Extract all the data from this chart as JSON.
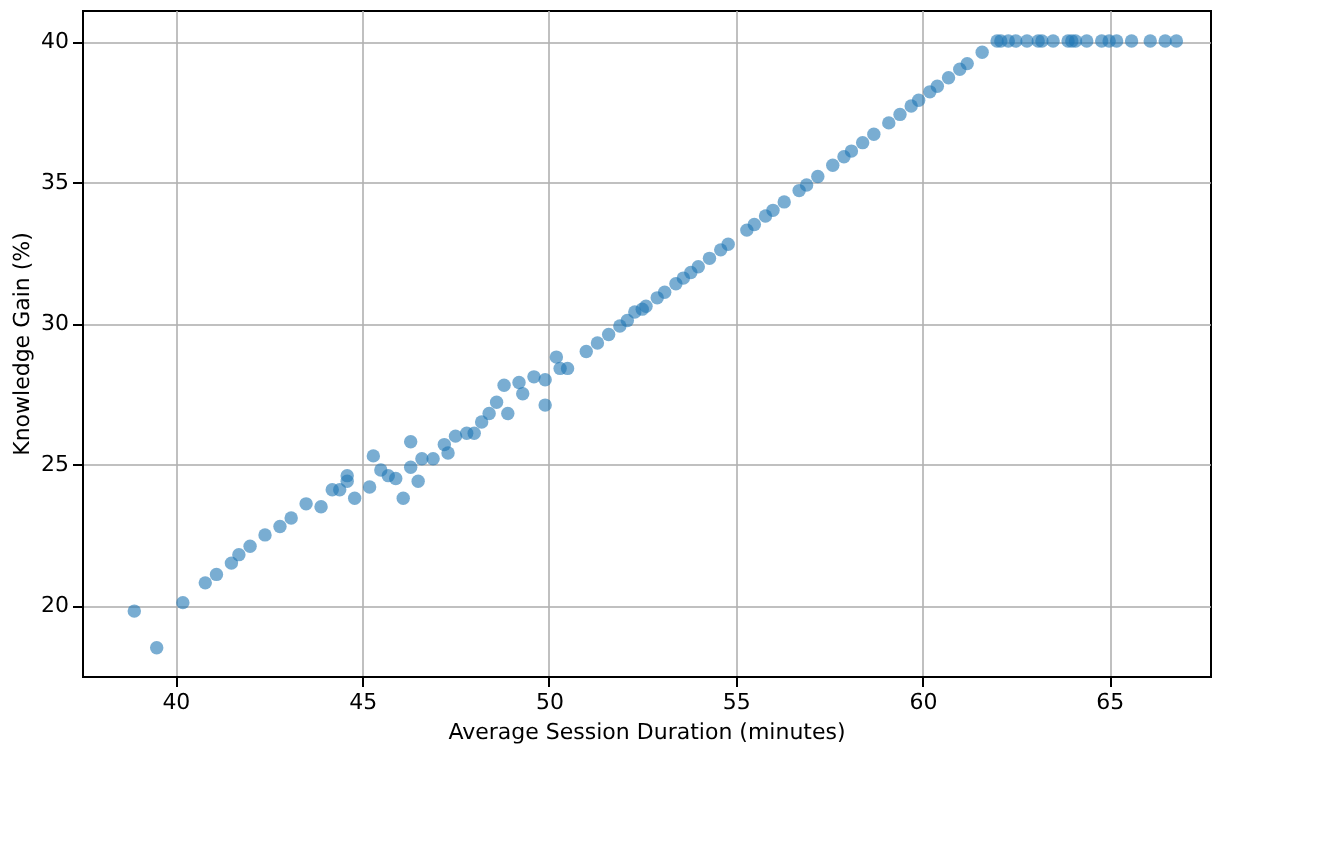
{
  "chart_data": {
    "type": "scatter",
    "xlabel": "Average Session Duration (minutes)",
    "ylabel": "Knowledge Gain (%)",
    "xlim": [
      37.5,
      67.7
    ],
    "ylim": [
      17.5,
      41.1
    ],
    "xticks": [
      40,
      45,
      50,
      55,
      60,
      65
    ],
    "yticks": [
      20,
      25,
      30,
      35,
      40
    ],
    "grid": true,
    "marker": "circle",
    "series": [
      {
        "color": "#1f77b4",
        "x": [
          38.9,
          39.5,
          40.2,
          40.8,
          41.1,
          41.5,
          41.7,
          42.0,
          42.4,
          42.8,
          43.1,
          43.5,
          43.9,
          44.2,
          44.4,
          44.6,
          44.6,
          44.8,
          45.2,
          45.3,
          45.5,
          45.7,
          45.9,
          46.1,
          46.3,
          46.3,
          46.5,
          46.6,
          46.9,
          47.2,
          47.3,
          47.5,
          47.8,
          48.0,
          48.2,
          48.4,
          48.6,
          48.8,
          48.9,
          49.2,
          49.3,
          49.6,
          49.9,
          49.9,
          50.2,
          50.3,
          50.5,
          51.0,
          51.3,
          51.6,
          51.9,
          52.1,
          52.3,
          52.5,
          52.6,
          52.9,
          53.1,
          53.4,
          53.6,
          53.8,
          54.0,
          54.3,
          54.6,
          54.8,
          55.3,
          55.5,
          55.8,
          56.0,
          56.3,
          56.7,
          56.9,
          57.2,
          57.6,
          57.9,
          58.1,
          58.4,
          58.7,
          59.1,
          59.4,
          59.7,
          59.9,
          60.2,
          60.4,
          60.7,
          61.0,
          61.2,
          61.6,
          62.0,
          62.1,
          62.3,
          62.5,
          62.8,
          63.1,
          63.2,
          63.5,
          63.9,
          64.0,
          64.1,
          64.4,
          64.8,
          65.0,
          65.2,
          65.6,
          66.1,
          66.5,
          66.8
        ],
        "values": [
          19.8,
          18.5,
          20.1,
          20.8,
          21.1,
          21.5,
          21.8,
          22.1,
          22.5,
          22.8,
          23.1,
          23.6,
          23.5,
          24.1,
          24.1,
          24.6,
          24.4,
          23.8,
          24.2,
          25.3,
          24.8,
          24.6,
          24.5,
          23.8,
          25.8,
          24.9,
          24.4,
          25.2,
          25.2,
          25.7,
          25.4,
          26.0,
          26.1,
          26.1,
          26.5,
          26.8,
          27.2,
          27.8,
          26.8,
          27.9,
          27.5,
          28.1,
          27.1,
          28.0,
          28.8,
          28.4,
          28.4,
          29.0,
          29.3,
          29.6,
          29.9,
          30.1,
          30.4,
          30.5,
          30.6,
          30.9,
          31.1,
          31.4,
          31.6,
          31.8,
          32.0,
          32.3,
          32.6,
          32.8,
          33.3,
          33.5,
          33.8,
          34.0,
          34.3,
          34.7,
          34.9,
          35.2,
          35.6,
          35.9,
          36.1,
          36.4,
          36.7,
          37.1,
          37.4,
          37.7,
          37.9,
          38.2,
          38.4,
          38.7,
          39.0,
          39.2,
          39.6,
          40.0,
          40.0,
          40.0,
          40.0,
          40.0,
          40.0,
          40.0,
          40.0,
          40.0,
          40.0,
          40.0,
          40.0,
          40.0,
          40.0,
          40.0,
          40.0,
          40.0,
          40.0,
          40.0
        ]
      }
    ]
  }
}
